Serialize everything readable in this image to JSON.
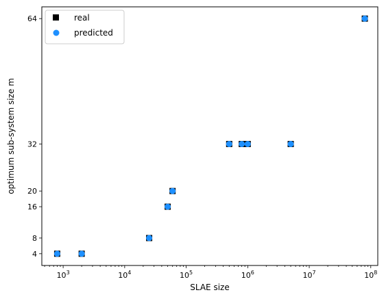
{
  "chart_data": {
    "type": "scatter",
    "xlabel": "SLAE size",
    "ylabel": "optimum sub-system size m",
    "x_scale": "log",
    "xlim": [
      450,
      130000000
    ],
    "ylim": [
      1.0,
      67.0
    ],
    "x_ticks": [
      {
        "value": 1000,
        "base": "10",
        "exp": "3"
      },
      {
        "value": 10000,
        "base": "10",
        "exp": "4"
      },
      {
        "value": 100000,
        "base": "10",
        "exp": "5"
      },
      {
        "value": 1000000,
        "base": "10",
        "exp": "6"
      },
      {
        "value": 10000000,
        "base": "10",
        "exp": "7"
      },
      {
        "value": 100000000,
        "base": "10",
        "exp": "8"
      }
    ],
    "y_ticks": [
      4,
      8,
      16,
      20,
      32,
      64
    ],
    "grid": false,
    "legend_position": "top-left",
    "series": [
      {
        "name": "real",
        "marker": "square",
        "color": "#000000",
        "x": [
          800,
          2000,
          25000,
          50000,
          60000,
          500000,
          800000,
          1000000,
          5000000,
          80000000
        ],
        "y": [
          4,
          4,
          8,
          16,
          20,
          32,
          32,
          32,
          32,
          64
        ]
      },
      {
        "name": "predicted",
        "marker": "circle",
        "color": "#1e90ff",
        "x": [
          800,
          2000,
          25000,
          50000,
          60000,
          500000,
          800000,
          1000000,
          5000000,
          80000000
        ],
        "y": [
          4,
          4,
          8,
          16,
          20,
          32,
          32,
          32,
          32,
          64
        ]
      }
    ]
  }
}
